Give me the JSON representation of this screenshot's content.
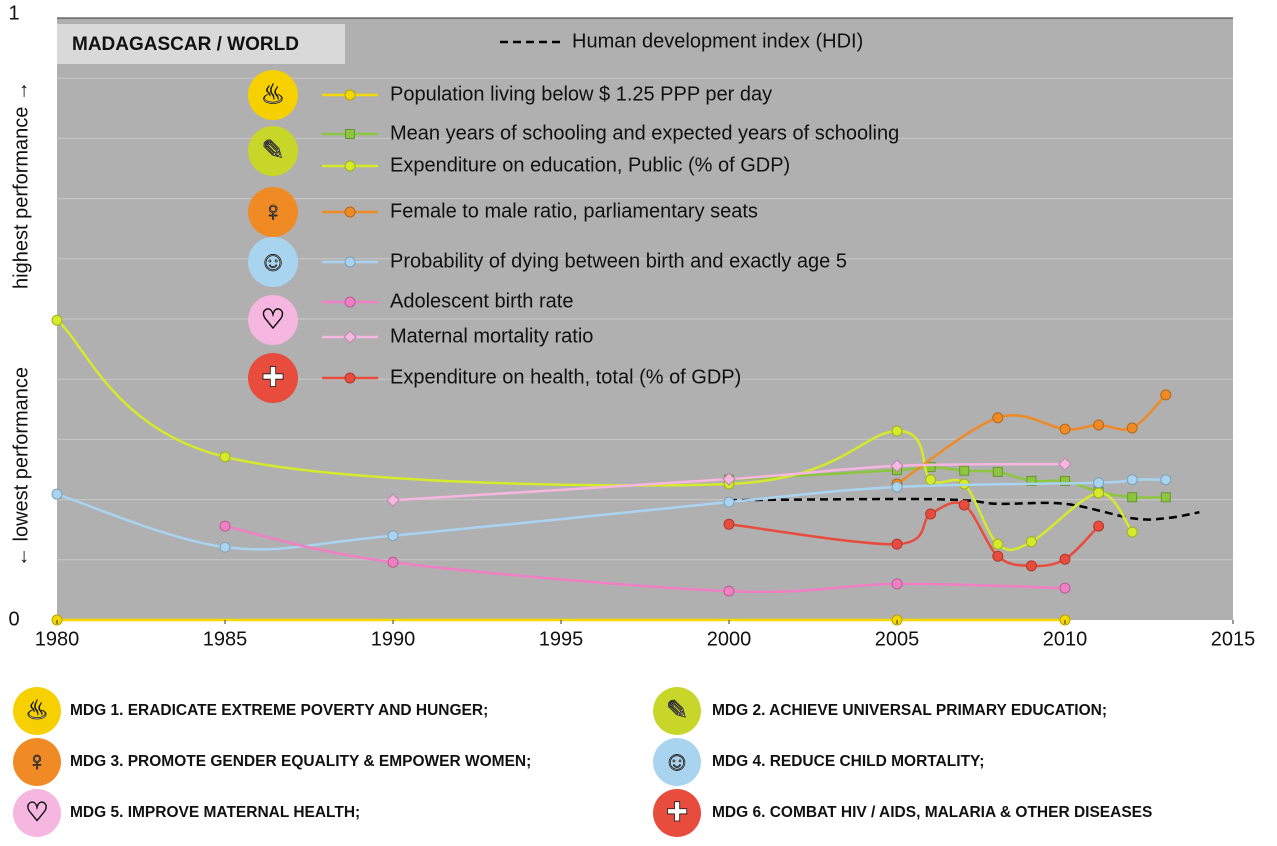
{
  "chart_data": {
    "type": "line",
    "panel_label": "MADAGASCAR / WORLD",
    "y_label_high": "highest performance →",
    "y_label_low": "← lowest performance",
    "xlim": [
      1980,
      2015
    ],
    "xticks": [
      1980,
      1985,
      1990,
      1995,
      2000,
      2005,
      2010,
      2015
    ],
    "ylim": [
      0,
      1
    ],
    "yticks": [
      0,
      1
    ],
    "ygrid": [
      0.1,
      0.2,
      0.3,
      0.4,
      0.5,
      0.6,
      0.7,
      0.8,
      0.9
    ],
    "series": [
      {
        "name": "Human development index (HDI)",
        "color": "#000000",
        "marker": "none",
        "dashed": true,
        "x": [
          2000,
          2005,
          2007,
          2008,
          2010,
          2012,
          2013,
          2014
        ],
        "values": [
          0.199,
          0.201,
          0.199,
          0.193,
          0.193,
          0.169,
          0.169,
          0.179
        ]
      },
      {
        "name": "Population living below $ 1.25 PPP per day",
        "color": "#f5d800",
        "marker": "circle",
        "x": [
          1980,
          2005,
          2010
        ],
        "values": [
          0,
          0,
          0
        ]
      },
      {
        "name": "Mean years of schooling and expected years of schooling",
        "color": "#8cc63f",
        "marker": "square",
        "x": [
          2000,
          2005,
          2006,
          2007,
          2008,
          2009,
          2010,
          2011,
          2012,
          2013
        ],
        "values": [
          0.233,
          0.249,
          0.254,
          0.248,
          0.246,
          0.231,
          0.231,
          0.213,
          0.204,
          0.204
        ]
      },
      {
        "name": "Expenditure on education, Public (% of GDP)",
        "color": "#d4ea2a",
        "marker": "circle",
        "x": [
          1980,
          1985,
          2000,
          2005,
          2006,
          2007,
          2008,
          2009,
          2011,
          2012
        ],
        "values": [
          0.498,
          0.271,
          0.226,
          0.314,
          0.233,
          0.226,
          0.126,
          0.13,
          0.211,
          0.146
        ]
      },
      {
        "name": "Female to male ratio, parliamentary seats",
        "color": "#f08a24",
        "marker": "circle",
        "x": [
          2005,
          2008,
          2010,
          2011,
          2012,
          2013
        ],
        "values": [
          0.226,
          0.336,
          0.317,
          0.324,
          0.319,
          0.374
        ]
      },
      {
        "name": "Probability of dying between birth and exactly age 5",
        "color": "#a9d4f0",
        "marker": "circle",
        "x": [
          1980,
          1985,
          1990,
          2000,
          2005,
          2011,
          2012,
          2013
        ],
        "values": [
          0.209,
          0.121,
          0.14,
          0.196,
          0.221,
          0.228,
          0.233,
          0.233
        ]
      },
      {
        "name": "Adolescent birth rate",
        "color": "#f07fc3",
        "marker": "circle",
        "x": [
          1985,
          1990,
          2000,
          2005,
          2010
        ],
        "values": [
          0.156,
          0.096,
          0.048,
          0.06,
          0.053
        ]
      },
      {
        "name": "Maternal mortality ratio",
        "color": "#f5b6df",
        "marker": "diamond",
        "x": [
          1990,
          2000,
          2005,
          2010
        ],
        "values": [
          0.199,
          0.234,
          0.256,
          0.259
        ]
      },
      {
        "name": "Expenditure on health, total (% of GDP)",
        "color": "#e84c3d",
        "marker": "circle",
        "x": [
          2000,
          2005,
          2006,
          2007,
          2008,
          2009,
          2010,
          2011
        ],
        "values": [
          0.159,
          0.126,
          0.176,
          0.191,
          0.106,
          0.09,
          0.101,
          0.156
        ]
      }
    ],
    "goals": [
      "MDG 1. ERADICATE EXTREME POVERTY AND HUNGER;",
      "MDG 2. ACHIEVE UNIVERSAL PRIMARY EDUCATION;",
      "MDG 3. PROMOTE GENDER EQUALITY & EMPOWER WOMEN;",
      "MDG 4. REDUCE CHILD MORTALITY;",
      "MDG 5. IMPROVE MATERNAL HEALTH;",
      "MDG 6. COMBAT HIV / AIDS, MALARIA & OTHER DISEASES"
    ]
  }
}
